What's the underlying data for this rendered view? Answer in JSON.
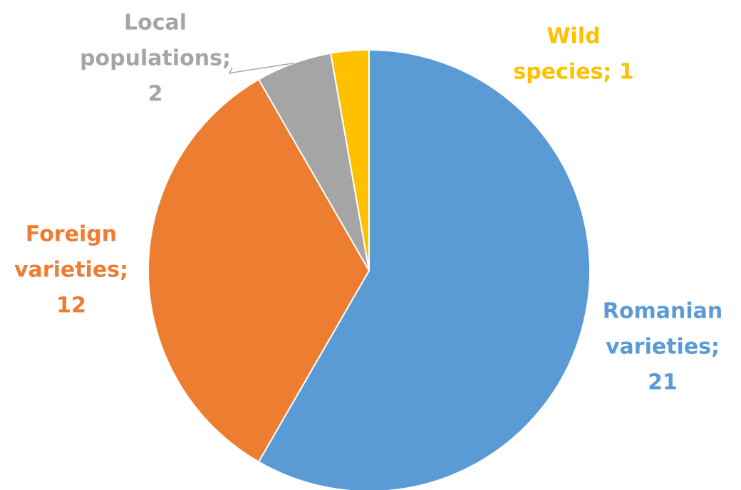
{
  "chart_data": {
    "type": "pie",
    "title": "",
    "slices": [
      {
        "category": "Romanian varieties",
        "value": 21,
        "color": "#5b9bd5",
        "label_lines": [
          "Romanian",
          "varieties;",
          "21"
        ]
      },
      {
        "category": "Foreign varieties",
        "value": 12,
        "color": "#ed7d31",
        "label_lines": [
          "Foreign",
          "varieties;",
          "12"
        ]
      },
      {
        "category": "Local populations",
        "value": 2,
        "color": "#a5a5a5",
        "label_lines": [
          "Local",
          "populations;",
          "2"
        ]
      },
      {
        "category": "Wild species",
        "value": 1,
        "color": "#ffc000",
        "label_lines": [
          "Wild",
          "species; 1"
        ]
      }
    ],
    "start_angle": "12 o'clock",
    "direction": "clockwise",
    "legend": "none",
    "data_labels": "outside end, category name and value"
  }
}
